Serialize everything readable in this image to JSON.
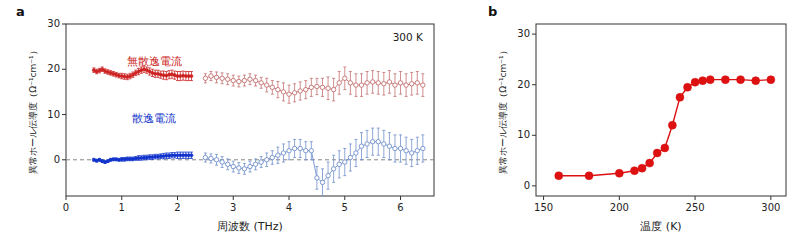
{
  "chart_data": [
    {
      "type": "line",
      "title": "a",
      "xlabel": "周波数 (THz)",
      "ylabel": "異常ホール伝導度（Ω⁻¹cm⁻¹）",
      "xlim": [
        0,
        6.6
      ],
      "ylim": [
        -8,
        30
      ],
      "xticks": [
        0,
        1,
        2,
        3,
        4,
        5,
        6
      ],
      "yticks": [
        0,
        10,
        20,
        30
      ],
      "grid": false,
      "reference_lines": [
        0
      ],
      "annotations": [
        {
          "text": "300 K"
        },
        {
          "text": "無散逸電流",
          "color": "#cc2222"
        },
        {
          "text": "散逸電流",
          "color": "#1133cc"
        }
      ],
      "series": [
        {
          "color": "#cc2222",
          "marker": "circle",
          "x": [
            0.5,
            0.55,
            0.6,
            0.65,
            0.7,
            0.75,
            0.8,
            0.85,
            0.9,
            0.95,
            1.0,
            1.05,
            1.1,
            1.15,
            1.2,
            1.25,
            1.3,
            1.35,
            1.4,
            1.45,
            1.5,
            1.55,
            1.6,
            1.65,
            1.7,
            1.75,
            1.8,
            1.85,
            1.9,
            1.95,
            2.0,
            2.05,
            2.1,
            2.15,
            2.2,
            2.25
          ],
          "values": [
            19.8,
            19.5,
            19.7,
            20.0,
            19.6,
            19.4,
            19.2,
            19.0,
            18.8,
            18.6,
            18.5,
            18.4,
            18.3,
            18.5,
            18.8,
            19.2,
            19.5,
            19.8,
            20.0,
            19.8,
            19.5,
            19.2,
            19.0,
            19.0,
            18.8,
            18.7,
            18.6,
            18.8,
            18.9,
            18.7,
            18.5,
            18.5,
            18.6,
            18.5,
            18.5,
            18.5
          ],
          "errors": [
            0.5,
            0.5,
            0.5,
            0.5,
            0.5,
            0.5,
            0.5,
            0.5,
            0.5,
            0.5,
            0.6,
            0.6,
            0.6,
            0.6,
            0.6,
            0.6,
            0.7,
            0.7,
            0.7,
            0.7,
            0.8,
            0.8,
            0.8,
            0.8,
            0.8,
            0.9,
            0.9,
            0.9,
            0.9,
            0.9,
            1.0,
            1.0,
            1.0,
            1.0,
            1.0,
            1.0
          ]
        },
        {
          "color": "#c47070",
          "marker": "open-circle",
          "x": [
            2.5,
            2.6,
            2.7,
            2.8,
            2.9,
            3.0,
            3.1,
            3.2,
            3.3,
            3.4,
            3.5,
            3.6,
            3.7,
            3.8,
            3.9,
            4.0,
            4.1,
            4.2,
            4.3,
            4.4,
            4.5,
            4.6,
            4.7,
            4.8,
            4.9,
            5.0,
            5.1,
            5.2,
            5.3,
            5.4,
            5.5,
            5.6,
            5.7,
            5.8,
            5.9,
            6.0,
            6.1,
            6.2,
            6.3,
            6.4
          ],
          "values": [
            18.0,
            18.5,
            18.2,
            18.0,
            17.8,
            17.5,
            17.3,
            17.5,
            17.8,
            17.5,
            17.0,
            16.5,
            16.0,
            15.5,
            15.0,
            14.5,
            14.8,
            15.2,
            15.5,
            16.0,
            16.2,
            16.0,
            15.8,
            15.5,
            17.0,
            18.0,
            17.0,
            16.5,
            16.5,
            17.0,
            17.2,
            17.0,
            16.8,
            17.2,
            16.5,
            17.0,
            16.5,
            16.8,
            17.0,
            16.5
          ],
          "errors": [
            1.0,
            1.0,
            1.2,
            1.2,
            1.2,
            1.2,
            1.2,
            1.2,
            1.2,
            1.2,
            1.2,
            1.5,
            1.5,
            1.8,
            2.0,
            2.0,
            2.0,
            2.0,
            2.0,
            2.0,
            1.8,
            2.0,
            2.5,
            2.5,
            2.5,
            2.5,
            2.5,
            2.5,
            2.5,
            2.5,
            2.5,
            2.5,
            2.5,
            2.5,
            2.5,
            2.5,
            2.5,
            2.5,
            2.5,
            2.5
          ]
        },
        {
          "color": "#1133cc",
          "marker": "circle",
          "x": [
            0.5,
            0.55,
            0.6,
            0.65,
            0.7,
            0.75,
            0.8,
            0.85,
            0.9,
            0.95,
            1.0,
            1.05,
            1.1,
            1.15,
            1.2,
            1.25,
            1.3,
            1.35,
            1.4,
            1.45,
            1.5,
            1.55,
            1.6,
            1.65,
            1.7,
            1.75,
            1.8,
            1.85,
            1.9,
            1.95,
            2.0,
            2.05,
            2.1,
            2.15,
            2.2,
            2.25
          ],
          "values": [
            0.0,
            -0.2,
            0.0,
            -0.3,
            -0.5,
            -0.3,
            0.0,
            0.1,
            0.1,
            0.0,
            0.1,
            0.1,
            0.2,
            0.2,
            0.2,
            0.3,
            0.4,
            0.4,
            0.5,
            0.5,
            0.6,
            0.6,
            0.7,
            0.7,
            0.8,
            0.8,
            0.9,
            0.9,
            1.0,
            1.0,
            1.0,
            1.0,
            1.0,
            1.0,
            1.0,
            1.0
          ],
          "errors": [
            0.3,
            0.3,
            0.3,
            0.3,
            0.3,
            0.3,
            0.3,
            0.3,
            0.3,
            0.3,
            0.4,
            0.4,
            0.4,
            0.4,
            0.4,
            0.4,
            0.5,
            0.5,
            0.5,
            0.5,
            0.5,
            0.5,
            0.5,
            0.5,
            0.5,
            0.6,
            0.6,
            0.6,
            0.6,
            0.6,
            0.7,
            0.7,
            0.7,
            0.7,
            0.7,
            0.7
          ]
        },
        {
          "color": "#7090cc",
          "marker": "open-circle",
          "x": [
            2.5,
            2.6,
            2.7,
            2.8,
            2.9,
            3.0,
            3.1,
            3.2,
            3.3,
            3.4,
            3.5,
            3.6,
            3.7,
            3.8,
            3.9,
            4.0,
            4.1,
            4.2,
            4.3,
            4.4,
            4.5,
            4.6,
            4.7,
            4.8,
            4.9,
            5.0,
            5.1,
            5.2,
            5.3,
            5.4,
            5.5,
            5.6,
            5.7,
            5.8,
            5.9,
            6.0,
            6.1,
            6.2,
            6.3,
            6.4
          ],
          "values": [
            0.5,
            0.3,
            0.0,
            -0.5,
            -1.0,
            -1.5,
            -1.8,
            -2.0,
            -1.5,
            -1.0,
            -0.5,
            0.0,
            0.5,
            1.0,
            1.5,
            2.0,
            2.5,
            2.5,
            2.0,
            2.0,
            -4.0,
            -5.0,
            -3.5,
            -2.0,
            -1.0,
            -0.5,
            0.5,
            1.5,
            3.0,
            3.5,
            4.0,
            4.0,
            3.5,
            3.0,
            2.5,
            2.5,
            2.0,
            1.5,
            2.0,
            2.5
          ],
          "errors": [
            1.0,
            1.0,
            1.2,
            1.2,
            1.2,
            1.2,
            1.2,
            1.2,
            1.2,
            1.2,
            1.2,
            1.5,
            1.5,
            1.8,
            2.0,
            2.0,
            2.0,
            2.0,
            2.0,
            2.0,
            2.5,
            3.0,
            3.0,
            3.0,
            3.0,
            3.0,
            3.0,
            3.0,
            3.0,
            3.0,
            3.0,
            3.0,
            3.0,
            3.0,
            3.0,
            3.0,
            3.0,
            3.0,
            3.0,
            3.0
          ]
        }
      ]
    },
    {
      "type": "line",
      "title": "b",
      "xlabel": "温度 (K)",
      "ylabel": "異常ホール伝導度（Ω⁻¹cm⁻¹）",
      "xlim": [
        145,
        310
      ],
      "ylim": [
        -2,
        32
      ],
      "xticks": [
        150,
        200,
        250,
        300
      ],
      "yticks": [
        0,
        10,
        20,
        30
      ],
      "grid": false,
      "series": [
        {
          "color": "#dd1111",
          "marker": "circle",
          "x": [
            160,
            180,
            200,
            210,
            215,
            220,
            225,
            230,
            235,
            240,
            245,
            250,
            255,
            260,
            270,
            280,
            290,
            300
          ],
          "values": [
            2.0,
            2.0,
            2.5,
            3.0,
            3.5,
            4.5,
            6.5,
            7.5,
            12.0,
            17.5,
            19.5,
            20.5,
            20.8,
            21.0,
            21.0,
            21.0,
            20.8,
            21.0
          ]
        }
      ]
    }
  ]
}
